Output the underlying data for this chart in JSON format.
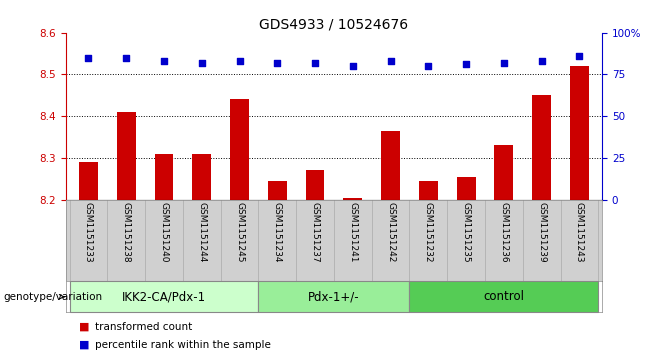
{
  "title": "GDS4933 / 10524676",
  "samples": [
    "GSM1151233",
    "GSM1151238",
    "GSM1151240",
    "GSM1151244",
    "GSM1151245",
    "GSM1151234",
    "GSM1151237",
    "GSM1151241",
    "GSM1151242",
    "GSM1151232",
    "GSM1151235",
    "GSM1151236",
    "GSM1151239",
    "GSM1151243"
  ],
  "bar_values": [
    8.29,
    8.41,
    8.31,
    8.31,
    8.44,
    8.245,
    8.27,
    8.205,
    8.365,
    8.245,
    8.255,
    8.33,
    8.45,
    8.52
  ],
  "dot_values": [
    85,
    85,
    83,
    82,
    83,
    82,
    82,
    80,
    83,
    80,
    81,
    82,
    83,
    86
  ],
  "ylim_left": [
    8.2,
    8.6
  ],
  "ylim_right": [
    0,
    100
  ],
  "yticks_left": [
    8.2,
    8.3,
    8.4,
    8.5,
    8.6
  ],
  "yticks_right": [
    0,
    25,
    50,
    75,
    100
  ],
  "bar_color": "#cc0000",
  "dot_color": "#0000cc",
  "groups": [
    {
      "label": "IKK2-CA/Pdx-1",
      "start": 0,
      "end": 5,
      "color": "#ccffcc"
    },
    {
      "label": "Pdx-1+/-",
      "start": 5,
      "end": 9,
      "color": "#99ee99"
    },
    {
      "label": "control",
      "start": 9,
      "end": 14,
      "color": "#55cc55"
    }
  ],
  "legend_items": [
    {
      "color": "#cc0000",
      "label": "transformed count"
    },
    {
      "color": "#0000cc",
      "label": "percentile rank within the sample"
    }
  ],
  "bar_bottom": 8.2,
  "grid_dotted_values": [
    8.3,
    8.4,
    8.5
  ],
  "background_color": "#ffffff",
  "group_header": "genotype/variation",
  "group_row_color": "#d0d0d0"
}
